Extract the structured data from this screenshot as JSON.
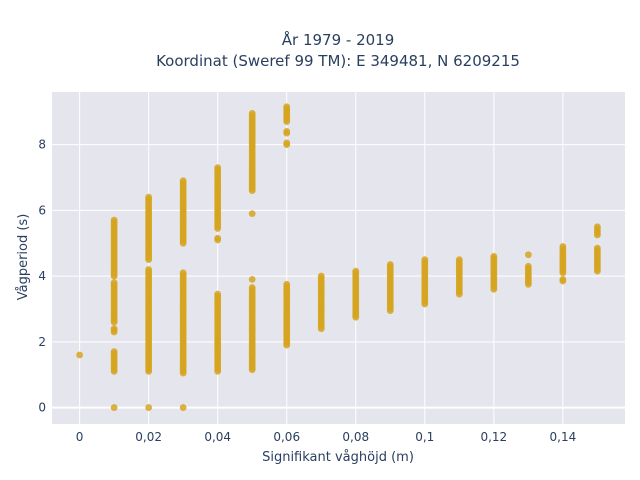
{
  "chart_data": {
    "type": "scatter",
    "title_line1": "År 1979 - 2019",
    "title_line2": "Koordinat (Sweref 99 TM): E 349481, N 6209215",
    "xlabel": "Signifikant våghöjd (m)",
    "ylabel": "Vågperiod (s)",
    "xlim": [
      -0.008,
      0.158
    ],
    "ylim": [
      -0.5,
      9.6
    ],
    "grid": true,
    "background": "#e5e5ee",
    "marker_color": "#d6a520",
    "x_ticks": [
      {
        "value": 0,
        "label": "0"
      },
      {
        "value": 0.02,
        "label": "0,02"
      },
      {
        "value": 0.04,
        "label": "0,04"
      },
      {
        "value": 0.06,
        "label": "0,06"
      },
      {
        "value": 0.08,
        "label": "0,08"
      },
      {
        "value": 0.1,
        "label": "0,1"
      },
      {
        "value": 0.12,
        "label": "0,12"
      },
      {
        "value": 0.14,
        "label": "0,14"
      }
    ],
    "y_ticks": [
      {
        "value": 0,
        "label": "0"
      },
      {
        "value": 2,
        "label": "2"
      },
      {
        "value": 4,
        "label": "4"
      },
      {
        "value": 6,
        "label": "6"
      },
      {
        "value": 8,
        "label": "8"
      }
    ],
    "series": [
      {
        "segments": [
          {
            "x": 0,
            "y_from": 1.6,
            "y_to": 1.6
          },
          {
            "x": 0.01,
            "y_from": 1.1,
            "y_to": 1.7
          },
          {
            "x": 0.01,
            "y_from": 2.3,
            "y_to": 2.4
          },
          {
            "x": 0.01,
            "y_from": 2.6,
            "y_to": 3.8
          },
          {
            "x": 0.01,
            "y_from": 4.0,
            "y_to": 5.7
          },
          {
            "x": 0.01,
            "y_from": 0.0,
            "y_to": 0.0
          },
          {
            "x": 0.02,
            "y_from": 0.0,
            "y_to": 0.0
          },
          {
            "x": 0.02,
            "y_from": 1.1,
            "y_to": 4.2
          },
          {
            "x": 0.02,
            "y_from": 4.5,
            "y_to": 6.4
          },
          {
            "x": 0.03,
            "y_from": 0.0,
            "y_to": 0.0
          },
          {
            "x": 0.03,
            "y_from": 1.05,
            "y_to": 4.1
          },
          {
            "x": 0.03,
            "y_from": 5.0,
            "y_to": 6.9
          },
          {
            "x": 0.04,
            "y_from": 1.1,
            "y_to": 3.45
          },
          {
            "x": 0.04,
            "y_from": 5.1,
            "y_to": 5.15
          },
          {
            "x": 0.04,
            "y_from": 5.45,
            "y_to": 7.3
          },
          {
            "x": 0.05,
            "y_from": 1.15,
            "y_to": 3.65
          },
          {
            "x": 0.05,
            "y_from": 3.9,
            "y_to": 3.9
          },
          {
            "x": 0.05,
            "y_from": 5.9,
            "y_to": 5.9
          },
          {
            "x": 0.05,
            "y_from": 6.6,
            "y_to": 8.95
          },
          {
            "x": 0.06,
            "y_from": 1.9,
            "y_to": 3.75
          },
          {
            "x": 0.06,
            "y_from": 8.0,
            "y_to": 8.05
          },
          {
            "x": 0.06,
            "y_from": 8.35,
            "y_to": 8.4
          },
          {
            "x": 0.06,
            "y_from": 8.7,
            "y_to": 9.15
          },
          {
            "x": 0.07,
            "y_from": 2.4,
            "y_to": 4.0
          },
          {
            "x": 0.08,
            "y_from": 2.75,
            "y_to": 4.15
          },
          {
            "x": 0.09,
            "y_from": 2.95,
            "y_to": 4.35
          },
          {
            "x": 0.1,
            "y_from": 3.15,
            "y_to": 4.5
          },
          {
            "x": 0.11,
            "y_from": 3.45,
            "y_to": 4.5
          },
          {
            "x": 0.12,
            "y_from": 3.6,
            "y_to": 4.6
          },
          {
            "x": 0.13,
            "y_from": 3.75,
            "y_to": 4.3
          },
          {
            "x": 0.13,
            "y_from": 4.65,
            "y_to": 4.65
          },
          {
            "x": 0.14,
            "y_from": 3.85,
            "y_to": 3.9
          },
          {
            "x": 0.14,
            "y_from": 4.1,
            "y_to": 4.9
          },
          {
            "x": 0.15,
            "y_from": 4.15,
            "y_to": 4.85
          },
          {
            "x": 0.15,
            "y_from": 5.25,
            "y_to": 5.5
          }
        ]
      }
    ]
  }
}
